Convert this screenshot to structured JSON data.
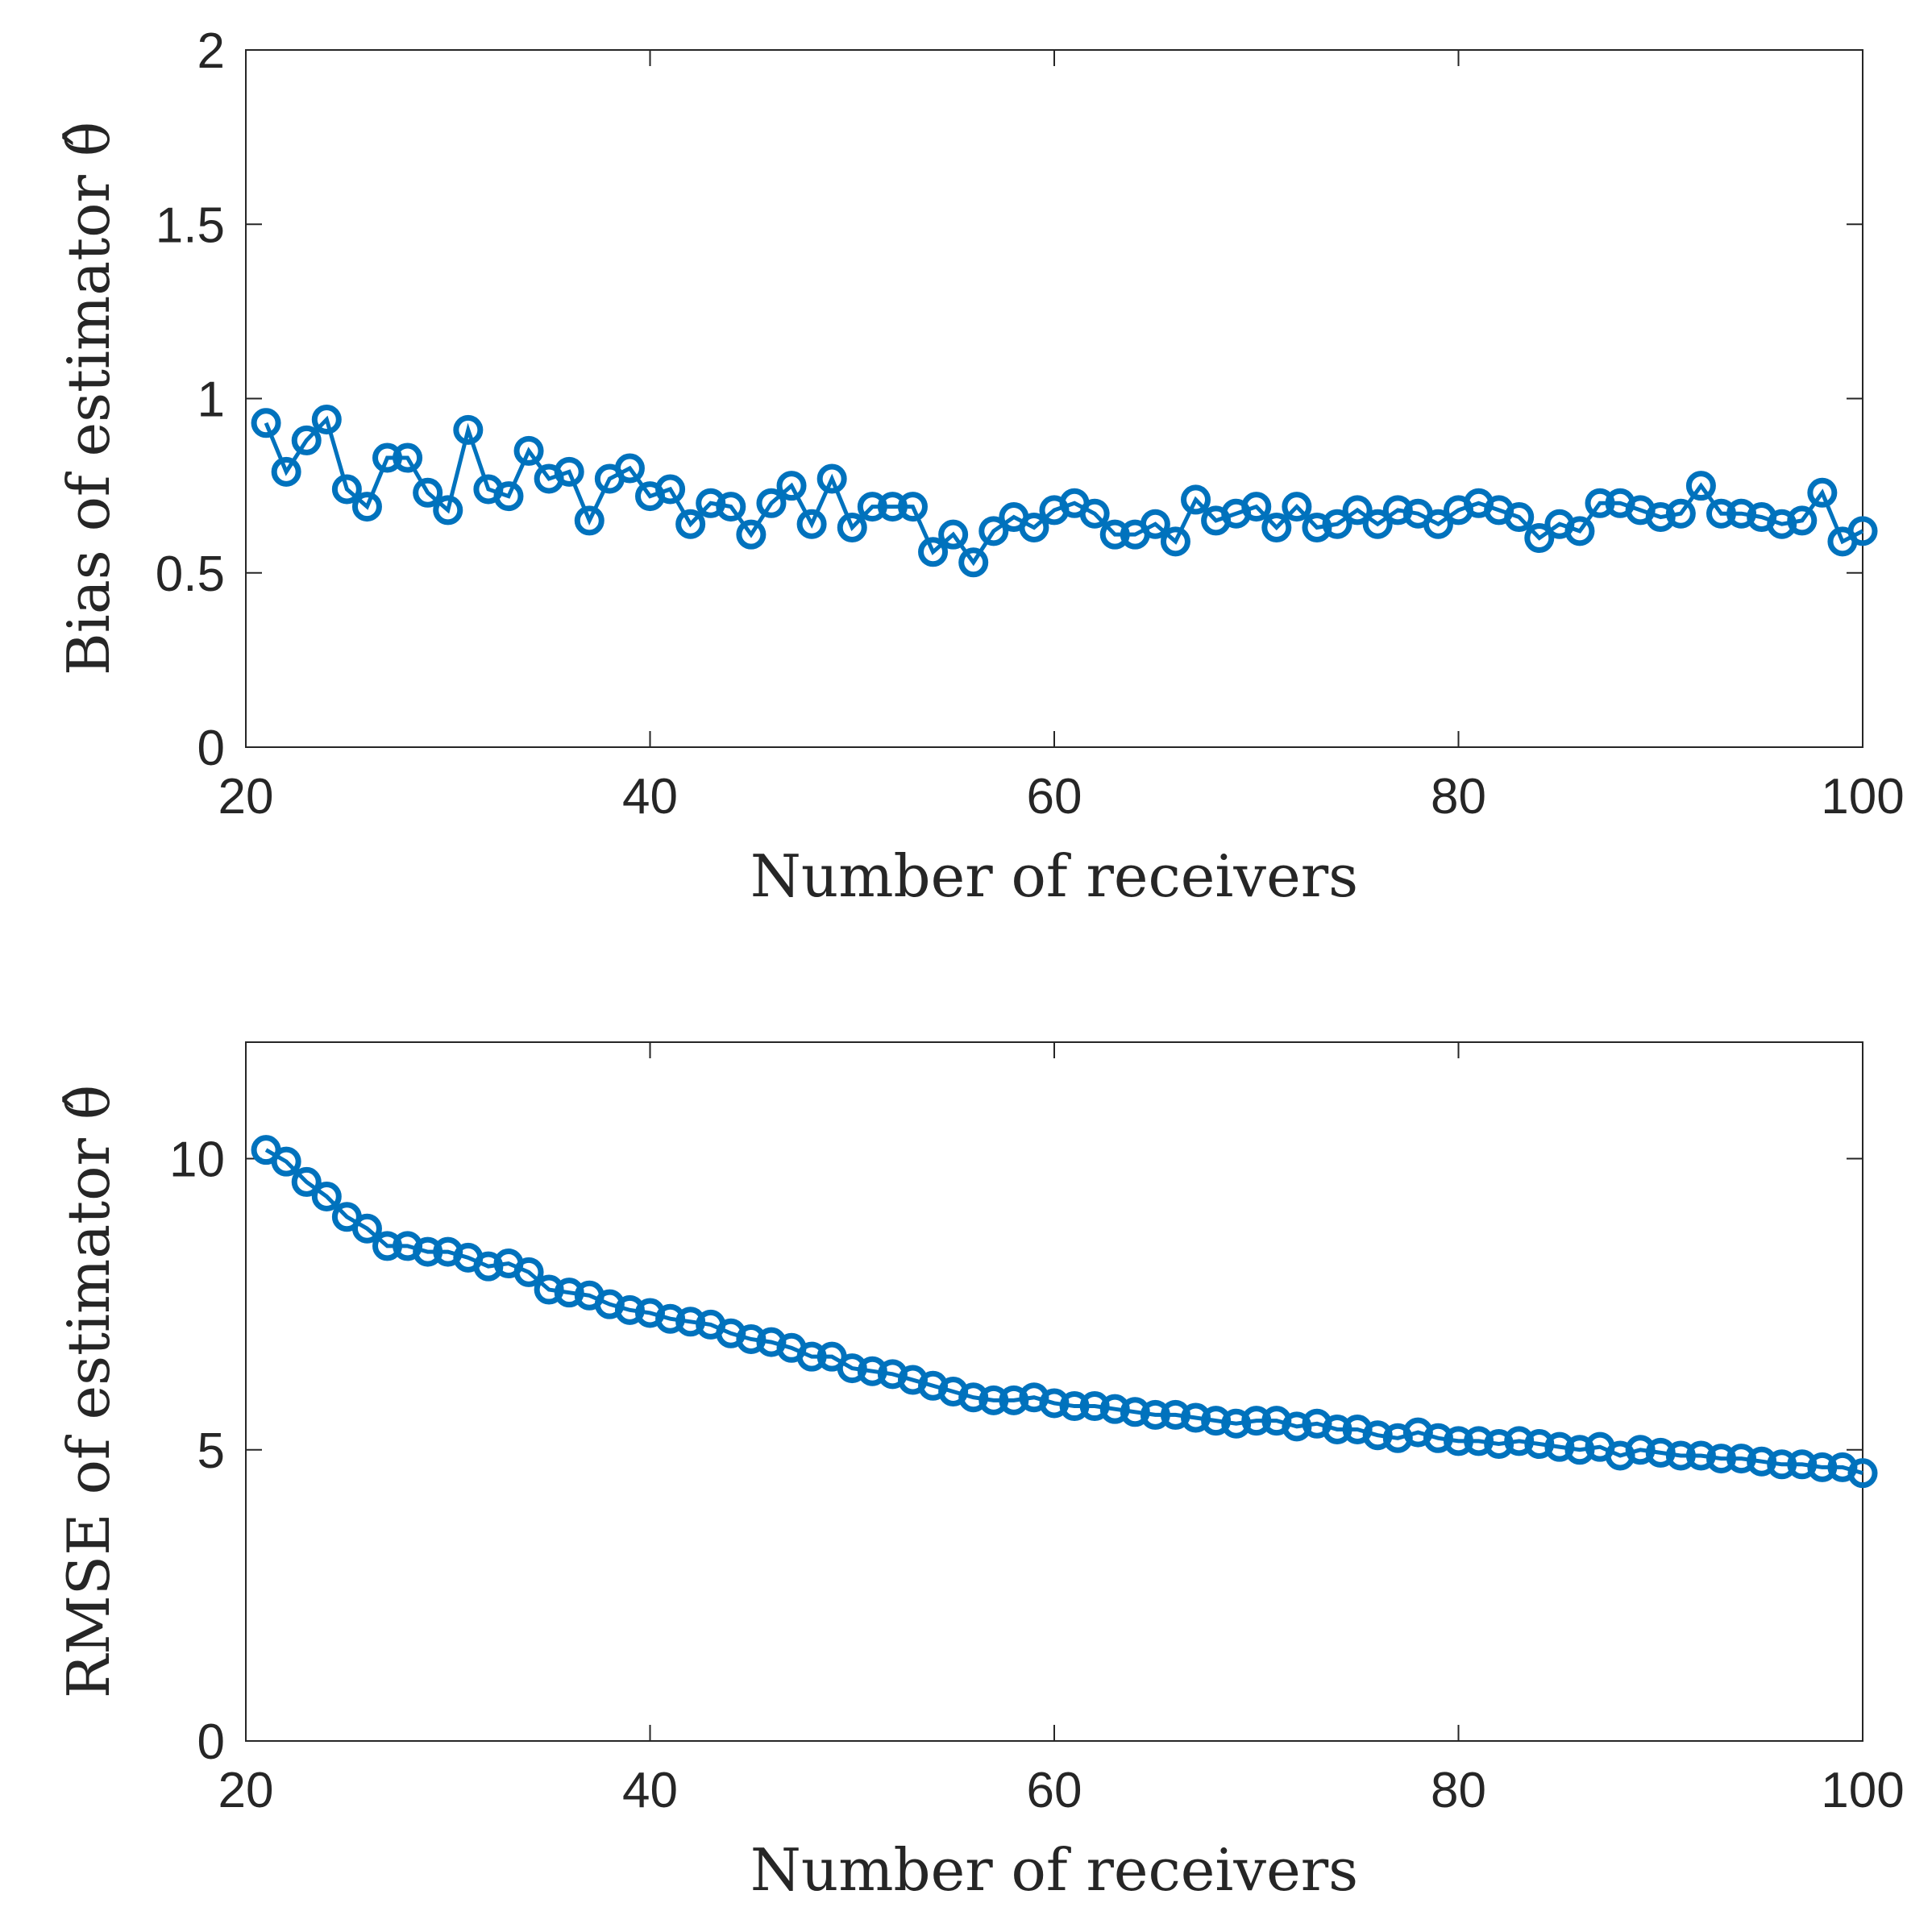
{
  "chart_data": [
    {
      "type": "line",
      "marker": "circle",
      "color": "#0072BD",
      "xlabel": "Number of receivers",
      "ylabel": "Bias of estimator θ̂",
      "xlim": [
        20,
        100
      ],
      "ylim": [
        0,
        2
      ],
      "xticks": [
        20,
        40,
        60,
        80,
        100
      ],
      "xtick_labels": [
        "20",
        "40",
        "60",
        "80",
        "100"
      ],
      "yticks": [
        0,
        0.5,
        1,
        1.5,
        2
      ],
      "ytick_labels": [
        "0",
        "0.5",
        "1",
        "1.5",
        "2"
      ],
      "x": [
        21,
        22,
        23,
        24,
        25,
        26,
        27,
        28,
        29,
        30,
        31,
        32,
        33,
        34,
        35,
        36,
        37,
        38,
        39,
        40,
        41,
        42,
        43,
        44,
        45,
        46,
        47,
        48,
        49,
        50,
        51,
        52,
        53,
        54,
        55,
        56,
        57,
        58,
        59,
        60,
        61,
        62,
        63,
        64,
        65,
        66,
        67,
        68,
        69,
        70,
        71,
        72,
        73,
        74,
        75,
        76,
        77,
        78,
        79,
        80,
        81,
        82,
        83,
        84,
        85,
        86,
        87,
        88,
        89,
        90,
        91,
        92,
        93,
        94,
        95,
        96,
        97,
        98,
        99,
        100
      ],
      "y": [
        0.93,
        0.79,
        0.88,
        0.94,
        0.74,
        0.69,
        0.83,
        0.83,
        0.73,
        0.68,
        0.91,
        0.74,
        0.72,
        0.85,
        0.77,
        0.79,
        0.65,
        0.77,
        0.8,
        0.72,
        0.74,
        0.64,
        0.7,
        0.69,
        0.61,
        0.7,
        0.75,
        0.64,
        0.77,
        0.63,
        0.69,
        0.69,
        0.69,
        0.56,
        0.61,
        0.53,
        0.62,
        0.66,
        0.63,
        0.68,
        0.7,
        0.67,
        0.61,
        0.61,
        0.64,
        0.59,
        0.71,
        0.65,
        0.67,
        0.69,
        0.63,
        0.69,
        0.63,
        0.64,
        0.68,
        0.64,
        0.68,
        0.67,
        0.64,
        0.68,
        0.7,
        0.68,
        0.66,
        0.6,
        0.64,
        0.62,
        0.7,
        0.7,
        0.68,
        0.66,
        0.67,
        0.75,
        0.67,
        0.67,
        0.66,
        0.64,
        0.65,
        0.73,
        0.59,
        0.62
      ]
    },
    {
      "type": "line",
      "marker": "circle",
      "color": "#0072BD",
      "xlabel": "Number of receivers",
      "ylabel": "RMSE of estimator θ̂",
      "xlim": [
        20,
        100
      ],
      "ylim": [
        0,
        12
      ],
      "xticks": [
        20,
        40,
        60,
        80,
        100
      ],
      "xtick_labels": [
        "20",
        "40",
        "60",
        "80",
        "100"
      ],
      "yticks": [
        0,
        5,
        10
      ],
      "ytick_labels": [
        "0",
        "5",
        "10"
      ],
      "x": [
        21,
        22,
        23,
        24,
        25,
        26,
        27,
        28,
        29,
        30,
        31,
        32,
        33,
        34,
        35,
        36,
        37,
        38,
        39,
        40,
        41,
        42,
        43,
        44,
        45,
        46,
        47,
        48,
        49,
        50,
        51,
        52,
        53,
        54,
        55,
        56,
        57,
        58,
        59,
        60,
        61,
        62,
        63,
        64,
        65,
        66,
        67,
        68,
        69,
        70,
        71,
        72,
        73,
        74,
        75,
        76,
        77,
        78,
        79,
        80,
        81,
        82,
        83,
        84,
        85,
        86,
        87,
        88,
        89,
        90,
        91,
        92,
        93,
        94,
        95,
        96,
        97,
        98,
        99,
        100
      ],
      "y": [
        10.15,
        9.95,
        9.6,
        9.35,
        9.0,
        8.8,
        8.5,
        8.5,
        8.4,
        8.4,
        8.3,
        8.15,
        8.2,
        8.05,
        7.75,
        7.7,
        7.65,
        7.5,
        7.4,
        7.35,
        7.25,
        7.2,
        7.15,
        7.0,
        6.9,
        6.85,
        6.75,
        6.6,
        6.6,
        6.4,
        6.35,
        6.3,
        6.2,
        6.1,
        6.0,
        5.9,
        5.85,
        5.85,
        5.9,
        5.8,
        5.75,
        5.75,
        5.7,
        5.65,
        5.6,
        5.6,
        5.55,
        5.5,
        5.45,
        5.5,
        5.5,
        5.4,
        5.45,
        5.35,
        5.35,
        5.25,
        5.2,
        5.3,
        5.2,
        5.15,
        5.15,
        5.1,
        5.15,
        5.1,
        5.05,
        5.0,
        5.05,
        4.9,
        5.0,
        4.95,
        4.9,
        4.9,
        4.85,
        4.85,
        4.8,
        4.75,
        4.75,
        4.7,
        4.7,
        4.6
      ]
    }
  ]
}
